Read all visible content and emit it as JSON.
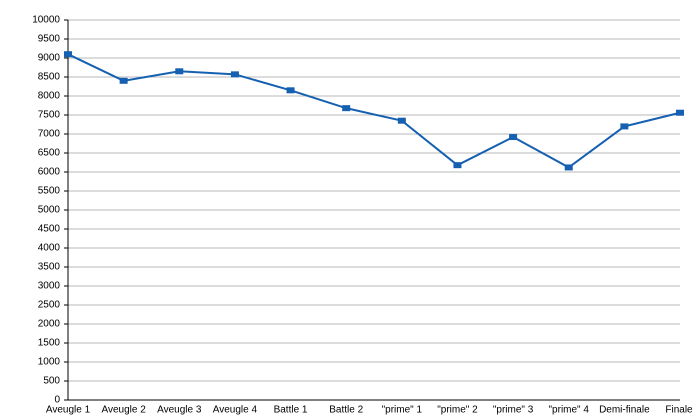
{
  "chart_data": {
    "type": "line",
    "categories": [
      "Aveugle 1",
      "Aveugle 2",
      "Aveugle 3",
      "Aveugle 4",
      "Battle 1",
      "Battle 2",
      "\"prime\" 1",
      "\"prime\" 2",
      "\"prime\" 3",
      "\"prime\" 4",
      "Demi-finale",
      "Finale"
    ],
    "series": [
      {
        "color": "#1560b0",
        "values": [
          9100,
          8400,
          8650,
          8570,
          8150,
          7680,
          7350,
          6180,
          6920,
          6120,
          7200,
          7560
        ]
      }
    ],
    "ylim": [
      0,
      10000
    ],
    "yticks": [
      0,
      500,
      1000,
      1500,
      2000,
      2500,
      3000,
      3500,
      4000,
      4500,
      5000,
      5500,
      6000,
      6500,
      7000,
      7500,
      8000,
      8500,
      9000,
      9500,
      10000
    ],
    "grid": true
  }
}
